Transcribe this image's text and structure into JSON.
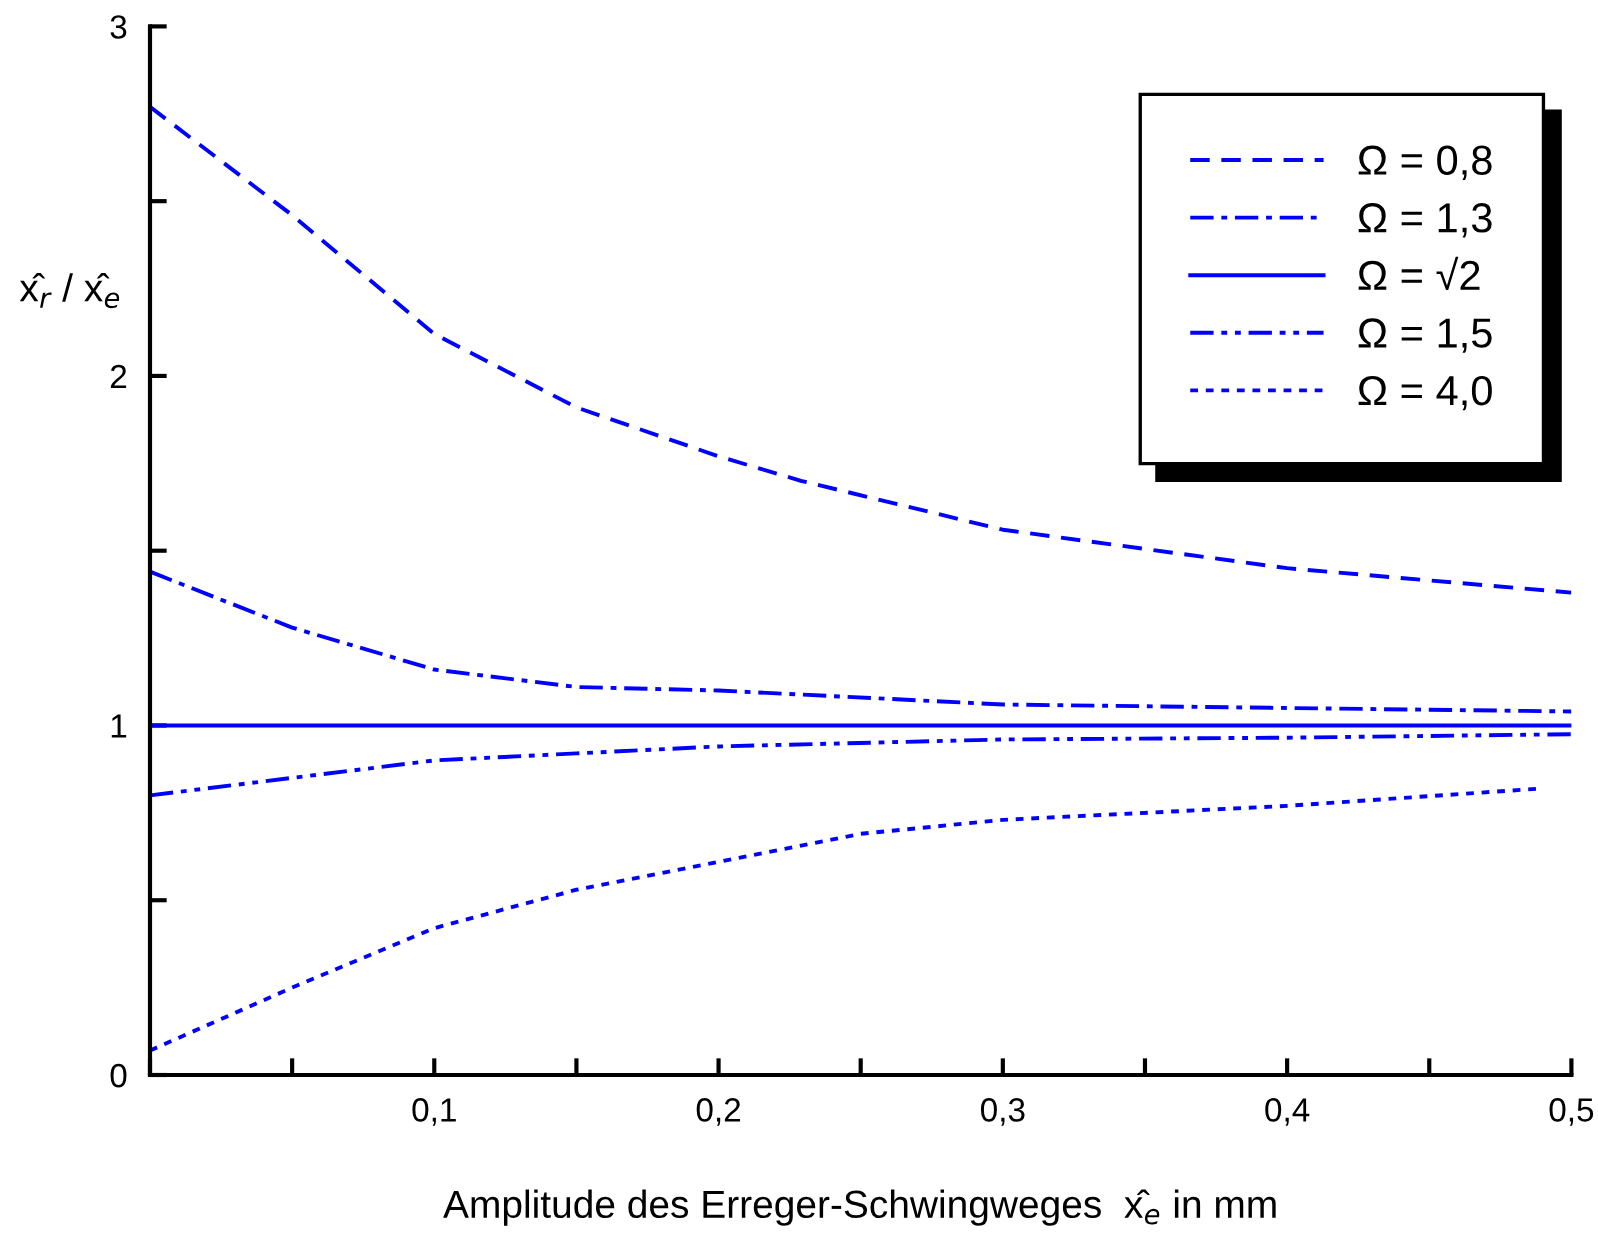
{
  "chart_data": {
    "type": "line",
    "xlabel": "Amplitude des Erreger-Schwingweges  x̂$_{e}$ in mm",
    "ylabel": "x̂$_{r}$ / x̂$_{e}$",
    "xlim": [
      0,
      0.5
    ],
    "ylim": [
      0,
      3
    ],
    "xticks": [
      {
        "value": 0,
        "label": null
      },
      {
        "value": 0.05,
        "label": null
      },
      {
        "value": 0.1,
        "label": "0,1"
      },
      {
        "value": 0.15,
        "label": null
      },
      {
        "value": 0.2,
        "label": "0,2"
      },
      {
        "value": 0.25,
        "label": null
      },
      {
        "value": 0.3,
        "label": "0,3"
      },
      {
        "value": 0.35,
        "label": null
      },
      {
        "value": 0.4,
        "label": "0,4"
      },
      {
        "value": 0.45,
        "label": null
      },
      {
        "value": 0.5,
        "label": "0,5"
      }
    ],
    "yticks": [
      0,
      {
        "value": 0.5,
        "label": null
      },
      1,
      {
        "value": 1.5,
        "label": null
      },
      2,
      {
        "value": 2.5,
        "label": null
      },
      3
    ],
    "grid": false,
    "legend": "top right",
    "marker": "none",
    "series": [
      {
        "name": "Ω = 0,8",
        "color": "#0000ff",
        "line_style": "dashed",
        "x": [
          0,
          0.05,
          0.1,
          0.15,
          0.2,
          0.229,
          0.3,
          0.4,
          0.5
        ],
        "values": [
          2.77,
          2.46,
          2.12,
          1.91,
          1.77,
          1.7,
          1.56,
          1.45,
          1.38
        ]
      },
      {
        "name": "Ω = 1,3",
        "color": "#0000ff",
        "line_style": "dashdot",
        "x": [
          0,
          0.05,
          0.1,
          0.15,
          0.2,
          0.3,
          0.4,
          0.5
        ],
        "values": [
          1.44,
          1.28,
          1.16,
          1.11,
          1.1,
          1.06,
          1.05,
          1.04
        ]
      },
      {
        "name": "Ω = √2",
        "color": "#0000ff",
        "line_style": "solid",
        "x": [
          0,
          0.5
        ],
        "values": [
          1,
          1
        ]
      },
      {
        "name": "Ω = 1,5",
        "color": "#0000ff",
        "line_style": "dashdotdot",
        "x": [
          0,
          0.05,
          0.1,
          0.15,
          0.2,
          0.3,
          0.4,
          0.5
        ],
        "values": [
          0.8,
          0.85,
          0.9,
          0.92,
          0.94,
          0.96,
          0.965,
          0.975
        ]
      },
      {
        "name": "Ω = 4,0",
        "color": "#0000ff",
        "line_style": "dotted",
        "x": [
          0,
          0.05,
          0.1,
          0.15,
          0.2,
          0.25,
          0.3,
          0.4,
          0.49
        ],
        "values": [
          0.07,
          0.25,
          0.42,
          0.53,
          0.61,
          0.69,
          0.73,
          0.77,
          0.82
        ]
      }
    ]
  }
}
